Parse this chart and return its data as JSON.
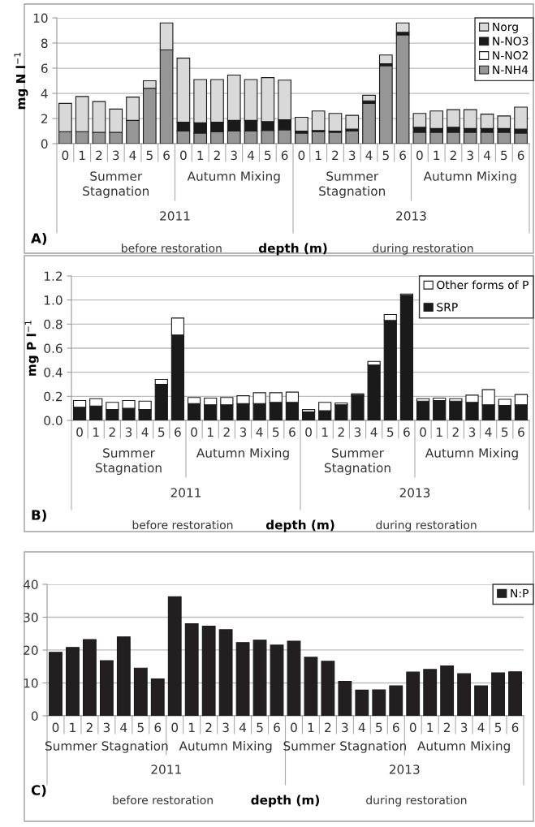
{
  "chart_data": [
    {
      "type": "bar",
      "stacked": true,
      "ylabel": "mg N l$^{−1}$",
      "xlabel": "depth (m)",
      "categories": [
        "0",
        "1",
        "2",
        "3",
        "4",
        "5",
        "6",
        "0",
        "1",
        "2",
        "3",
        "4",
        "5",
        "6",
        "0",
        "1",
        "2",
        "3",
        "4",
        "5",
        "6",
        "0",
        "1",
        "2",
        "3",
        "4",
        "5",
        "6"
      ],
      "series": [
        {
          "name": "N-NH4",
          "color": "#969696",
          "values": [
            0.95,
            0.95,
            0.9,
            0.9,
            1.85,
            4.4,
            7.45,
            1.0,
            0.85,
            0.95,
            1.0,
            1.0,
            1.05,
            1.1,
            0.85,
            0.95,
            0.9,
            1.0,
            3.2,
            6.2,
            8.65,
            0.9,
            0.9,
            0.9,
            0.9,
            0.9,
            0.9,
            0.85
          ]
        },
        {
          "name": "N-NO2",
          "color": "#ffffff",
          "values": [
            null,
            null,
            null,
            null,
            null,
            null,
            null,
            null,
            null,
            null,
            null,
            null,
            null,
            null,
            null,
            null,
            null,
            null,
            null,
            null,
            null,
            null,
            null,
            null,
            null,
            null,
            null,
            null
          ]
        },
        {
          "name": "N-NO3",
          "color": "#1a1a1a",
          "values": [
            null,
            null,
            null,
            null,
            null,
            null,
            null,
            0.7,
            0.8,
            0.75,
            0.85,
            0.85,
            0.7,
            0.8,
            0.15,
            0.1,
            0.1,
            0.15,
            0.2,
            0.15,
            0.2,
            0.4,
            0.3,
            0.4,
            0.3,
            0.3,
            0.3,
            0.3
          ]
        },
        {
          "name": "Norg",
          "color": "#d9d9d9",
          "values": [
            2.25,
            2.8,
            2.45,
            1.85,
            1.85,
            0.6,
            2.15,
            5.1,
            3.45,
            3.4,
            3.6,
            3.25,
            3.5,
            3.15,
            1.1,
            1.55,
            1.4,
            1.1,
            0.45,
            0.7,
            0.75,
            1.1,
            1.4,
            1.4,
            1.5,
            1.15,
            1.0,
            1.75
          ]
        }
      ],
      "ylim": [
        0,
        10
      ],
      "yticks": [
        0,
        2,
        4,
        6,
        8,
        10
      ],
      "grid": "y",
      "legend": "top right",
      "annotations": [
        "Summer\nStagnation",
        "Autumn Mixing",
        "Summer\nStagnation",
        "Autumn Mixing",
        "2011",
        "2013",
        "A)",
        "before restoration",
        "during restoration"
      ]
    },
    {
      "type": "bar",
      "stacked": true,
      "ylabel": "mg P l$^{−1}$",
      "xlabel": "depth (m)",
      "categories": [
        "0",
        "1",
        "2",
        "3",
        "4",
        "5",
        "6",
        "0",
        "1",
        "2",
        "3",
        "4",
        "5",
        "6",
        "0",
        "1",
        "2",
        "3",
        "4",
        "5",
        "6",
        "0",
        "1",
        "2",
        "3",
        "4",
        "5",
        "6"
      ],
      "series": [
        {
          "name": "SRP",
          "color": "#1a1a1a",
          "values": [
            0.11,
            0.12,
            0.09,
            0.1,
            0.09,
            0.3,
            0.71,
            0.14,
            0.13,
            0.13,
            0.14,
            0.14,
            0.15,
            0.15,
            0.07,
            0.08,
            0.13,
            0.21,
            0.46,
            0.83,
            1.04,
            0.16,
            0.165,
            0.16,
            0.15,
            0.13,
            0.125,
            0.13
          ]
        },
        {
          "name": "Other forms of P",
          "color": "#ffffff",
          "values": [
            0.055,
            0.06,
            0.06,
            0.065,
            0.07,
            0.04,
            0.14,
            0.05,
            0.055,
            0.06,
            0.065,
            0.09,
            0.08,
            0.085,
            0.02,
            0.07,
            0.015,
            0.01,
            0.03,
            0.05,
            0.01,
            0.02,
            0.02,
            0.02,
            0.06,
            0.125,
            0.05,
            0.085
          ]
        }
      ],
      "ylim": [
        0,
        1.2
      ],
      "yticks": [
        {
          "value": 0,
          "label": "0.0"
        },
        {
          "value": 0.2,
          "label": "0.2"
        },
        {
          "value": 0.4,
          "label": "0.4"
        },
        {
          "value": 0.6,
          "label": "0.6"
        },
        {
          "value": 0.8,
          "label": "0.8"
        },
        {
          "value": 1.0,
          "label": "1.0"
        },
        {
          "value": 1.2,
          "label": "1.2"
        }
      ],
      "grid": "y",
      "legend": "top right",
      "annotations": [
        "Summer\nStagnation",
        "Autumn Mixing",
        "Summer\nStagnation",
        "Autumn Mixing",
        "2011",
        "2013",
        "B)",
        "before restoration",
        "during restoration"
      ]
    },
    {
      "type": "bar",
      "xlabel": "depth (m)",
      "categories": [
        "0",
        "1",
        "2",
        "3",
        "4",
        "5",
        "6",
        "0",
        "1",
        "2",
        "3",
        "4",
        "5",
        "6",
        "0",
        "1",
        "2",
        "3",
        "4",
        "5",
        "6",
        "0",
        "1",
        "2",
        "3",
        "4",
        "5",
        "6"
      ],
      "series": [
        {
          "name": "N:P",
          "color": "#231f20",
          "values": [
            19.3,
            20.8,
            23.2,
            16.8,
            24,
            14.5,
            11.2,
            36.2,
            28,
            27.3,
            26.2,
            22.3,
            23,
            21.5,
            22.7,
            17.8,
            16.6,
            10.5,
            7.8,
            7.9,
            9.1,
            13.3,
            14.1,
            15.2,
            12.8,
            9.1,
            13.1,
            13.4
          ]
        }
      ],
      "ylim": [
        0,
        40
      ],
      "yticks": [
        0,
        10,
        20,
        30,
        40
      ],
      "grid": "y",
      "legend": "top right",
      "annotations": [
        "Summer Stagnation",
        "Autumn Mixing",
        "Summer Stagnation",
        "Autumn Mixing",
        "2011",
        "2013",
        "C)",
        "before restoration",
        "during restoration"
      ]
    }
  ]
}
